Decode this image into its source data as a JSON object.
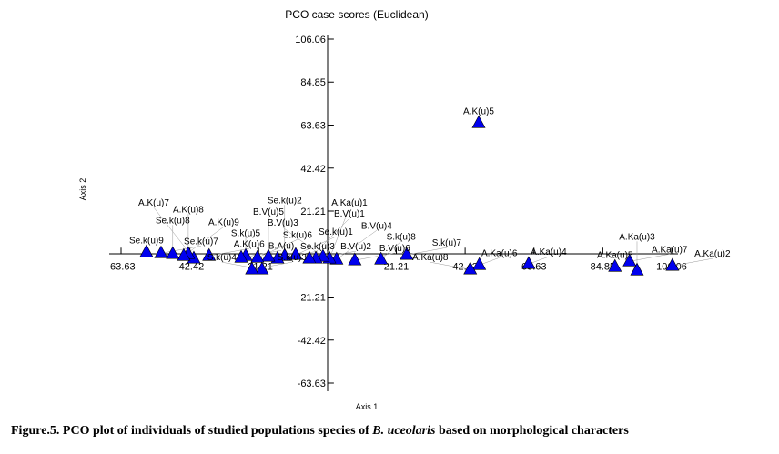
{
  "chart_data": {
    "type": "scatter",
    "title": "PCO case scores (Euclidean)",
    "xlabel": "Axis 1",
    "ylabel": "Axis 2",
    "xlim": [
      -63.63,
      106.06
    ],
    "ylim": [
      -63.63,
      106.06
    ],
    "x_ticks": [
      "-63.63",
      "-42.42",
      "-21.21",
      "21.21",
      "42.42",
      "63.63",
      "84.85",
      "106.06"
    ],
    "y_ticks": [
      "106.06",
      "84.85",
      "63.63",
      "42.42",
      "21.21",
      "-21.21",
      "-42.42",
      "-63.63"
    ],
    "tick_values": [
      -63.63,
      -42.42,
      -21.21,
      21.21,
      42.42,
      63.63,
      84.85,
      106.06
    ],
    "grid": false,
    "marker": "triangle",
    "marker_color": "#0000ee",
    "points": [
      {
        "label": "A.K(u)5",
        "x": 46.6,
        "y": 64.6
      },
      {
        "label": "A.Ka(u)2",
        "x": 106.3,
        "y": -5.8
      },
      {
        "label": "A.Ka(u)3",
        "x": 95.4,
        "y": -8.1
      },
      {
        "label": "A.Ka(u)7",
        "x": 93.1,
        "y": -3.6
      },
      {
        "label": "A.Ka(u)5",
        "x": 88.6,
        "y": -6.3
      },
      {
        "label": "A.Ka(u)4",
        "x": 62.0,
        "y": -4.9
      },
      {
        "label": "A.Ka(u)6",
        "x": 46.8,
        "y": -5.4
      },
      {
        "label": "A.Ka(u)8",
        "x": 44.0,
        "y": -7.6
      },
      {
        "label": "S.k(u)7",
        "x": 24.4,
        "y": -0.4
      },
      {
        "label": "S.k(u)8",
        "x": 16.5,
        "y": -2.7
      },
      {
        "label": "B.V(u)6",
        "x": 8.4,
        "y": -3.1
      },
      {
        "label": "B.V(u)4",
        "x": 2.8,
        "y": -2.7
      },
      {
        "label": "A.Ka(u)1",
        "x": 0.6,
        "y": -2.2
      },
      {
        "label": "B.V(u)3",
        "x": -1.4,
        "y": -1.3
      },
      {
        "label": "B.V(u)2",
        "x": -3.6,
        "y": -2.2
      },
      {
        "label": "B.V(u)1",
        "x": -5.6,
        "y": -2.2
      },
      {
        "label": "Se.k(u)1",
        "x": -9.8,
        "y": -0.4
      },
      {
        "label": "Se.k(u)2",
        "x": -13.2,
        "y": -0.9
      },
      {
        "label": "Se.k(u)3",
        "x": -15.4,
        "y": -2.2
      },
      {
        "label": "B.V(u)5",
        "x": -18.2,
        "y": -1.3
      },
      {
        "label": "S.k(u)6",
        "x": -21.6,
        "y": -1.8
      },
      {
        "label": "S.k(u)4",
        "x": -20.2,
        "y": -7.6
      },
      {
        "label": "S.k(u)3",
        "x": -23.3,
        "y": -7.6
      },
      {
        "label": "S.k(u)5",
        "x": -25.2,
        "y": -0.9
      },
      {
        "label": "B.A(u)",
        "x": -26.6,
        "y": -1.8
      },
      {
        "label": "A.K(u)6",
        "x": -36.5,
        "y": -0.9
      },
      {
        "label": "A.K(u)7",
        "x": -41.2,
        "y": -2.2
      },
      {
        "label": "A.K(u)8",
        "x": -42.9,
        "y": 0.0
      },
      {
        "label": "A.K(u)9",
        "x": -44.3,
        "y": -0.9
      },
      {
        "label": "Se.k(u)8",
        "x": -47.7,
        "y": 0.0
      },
      {
        "label": "Se.k(u)7",
        "x": -51.3,
        "y": 0.4
      },
      {
        "label": "Se.k(u)9",
        "x": -55.8,
        "y": 0.9
      }
    ]
  },
  "caption": {
    "prefix": "Figure.5. PCO plot of individuals of studied populations species of ",
    "species": "B. uceolaris",
    "suffix": " based on morphological characters"
  }
}
